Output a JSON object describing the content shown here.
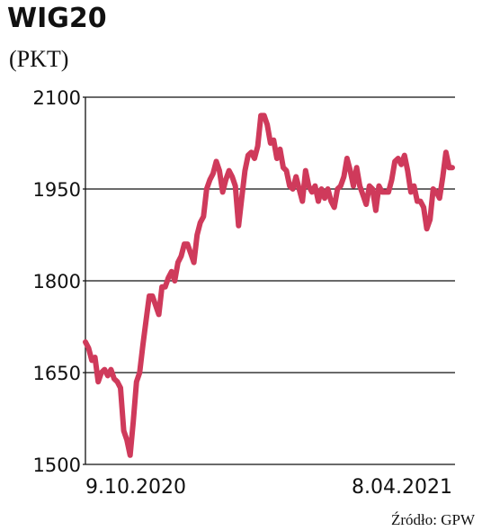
{
  "chart_data": {
    "type": "line",
    "title": "WIG20",
    "subtitle": "(PKT)",
    "source": "Źródło: GPW",
    "categories": [
      "9.10.2020",
      null,
      null,
      null,
      null,
      null,
      null,
      null,
      null,
      null,
      null,
      null,
      null,
      null,
      null,
      null,
      null,
      null,
      null,
      null,
      null,
      null,
      null,
      null,
      null,
      null,
      null,
      null,
      null,
      null,
      null,
      null,
      null,
      null,
      null,
      null,
      null,
      null,
      null,
      null,
      null,
      null,
      null,
      null,
      null,
      null,
      null,
      null,
      null,
      null,
      null,
      null,
      null,
      null,
      null,
      null,
      null,
      null,
      null,
      null,
      null,
      null,
      null,
      null,
      null,
      null,
      null,
      null,
      null,
      null,
      null,
      null,
      null,
      null,
      null,
      null,
      null,
      null,
      null,
      null,
      null,
      null,
      null,
      null,
      null,
      null,
      null,
      null,
      null,
      null,
      null,
      null,
      null,
      null,
      null,
      null,
      null,
      null,
      null,
      null,
      null,
      null,
      null,
      null,
      null,
      null,
      null,
      null,
      null,
      null,
      null,
      null,
      null,
      null,
      null,
      "8.04.2021"
    ],
    "values": [
      1700,
      1690,
      1670,
      1675,
      1635,
      1650,
      1655,
      1645,
      1655,
      1640,
      1635,
      1625,
      1555,
      1540,
      1515,
      1570,
      1635,
      1650,
      1695,
      1735,
      1775,
      1775,
      1760,
      1745,
      1790,
      1790,
      1805,
      1815,
      1800,
      1830,
      1840,
      1860,
      1860,
      1845,
      1830,
      1875,
      1895,
      1905,
      1950,
      1965,
      1975,
      1995,
      1980,
      1945,
      1965,
      1980,
      1970,
      1955,
      1890,
      1935,
      1980,
      2005,
      2010,
      2000,
      2020,
      2070,
      2070,
      2055,
      2025,
      2030,
      2000,
      2015,
      1985,
      1980,
      1955,
      1950,
      1970,
      1950,
      1930,
      1980,
      1955,
      1945,
      1955,
      1930,
      1950,
      1935,
      1950,
      1930,
      1920,
      1950,
      1955,
      1970,
      2000,
      1980,
      1955,
      1985,
      1955,
      1940,
      1925,
      1955,
      1950,
      1915,
      1955,
      1945,
      1945,
      1945,
      1965,
      1995,
      2000,
      1990,
      2005,
      1980,
      1945,
      1955,
      1930,
      1930,
      1920,
      1885,
      1900,
      1950,
      1945,
      1935,
      1970,
      2010,
      1985,
      1985
    ],
    "color": "#cf3a5b",
    "ylim": [
      1500,
      2100
    ],
    "yticks": [
      1500,
      1650,
      1800,
      1950,
      2100
    ],
    "grid": true
  }
}
